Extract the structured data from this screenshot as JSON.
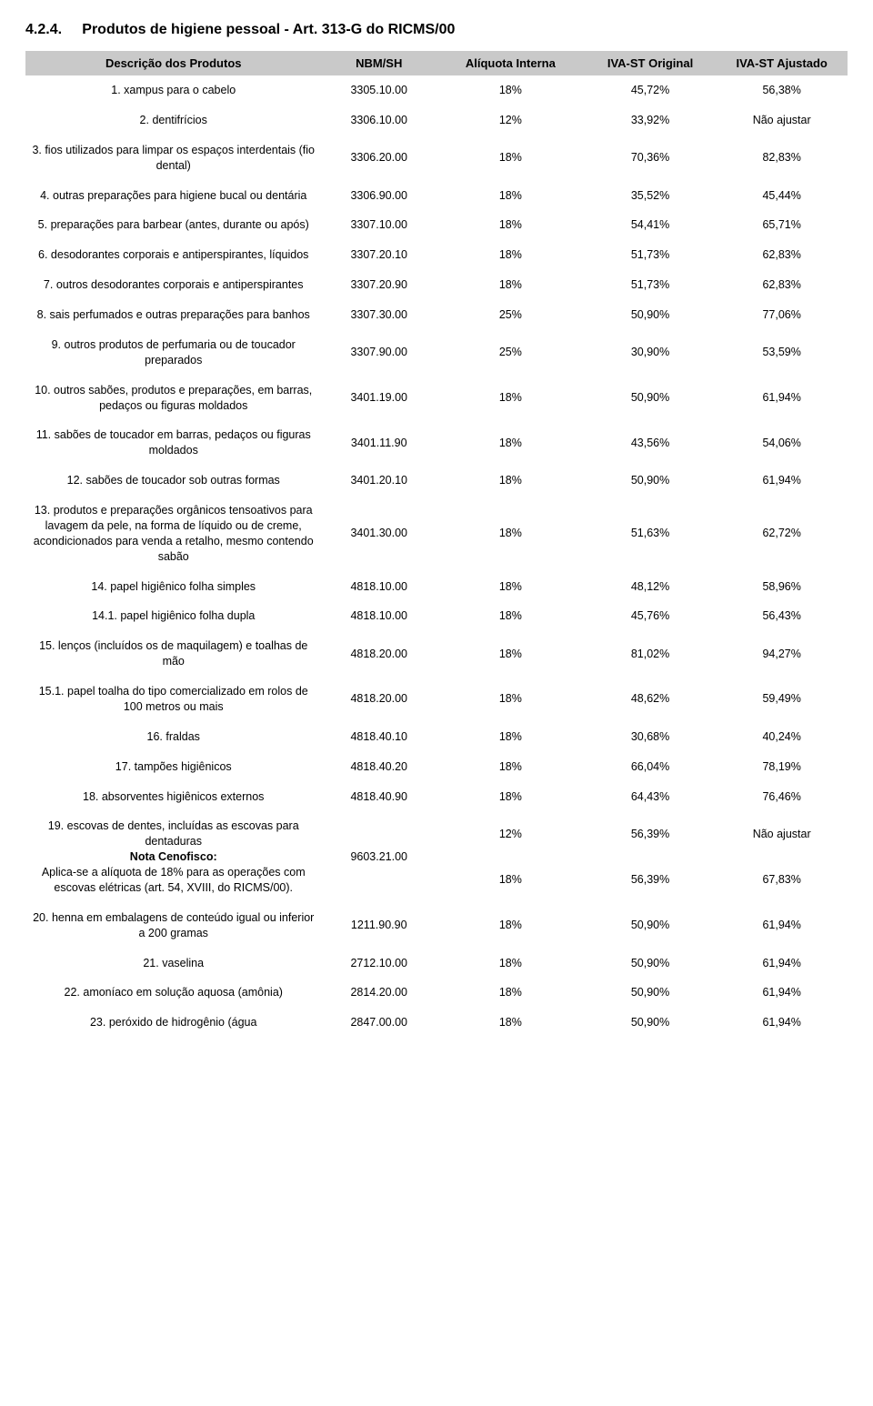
{
  "document": {
    "section_number": "4.2.4.",
    "section_title": "Produtos de higiene pessoal - Art. 313-G do RICMS/00",
    "columns": [
      "Descrição dos Produtos",
      "NBM/SH",
      "Alíquota Interna",
      "IVA-ST Original",
      "IVA-ST Ajustado"
    ],
    "rows": [
      {
        "desc": "1. xampus para o cabelo",
        "nbm": "3305.10.00",
        "aliq": "18%",
        "iva1": "45,72%",
        "iva2": "56,38%"
      },
      {
        "desc": "2. dentifrícios",
        "nbm": "3306.10.00",
        "aliq": "12%",
        "iva1": "33,92%",
        "iva2": "Não ajustar"
      },
      {
        "desc": "3. fios utilizados para limpar os espaços interdentais (fio dental)",
        "nbm": "3306.20.00",
        "aliq": "18%",
        "iva1": "70,36%",
        "iva2": "82,83%"
      },
      {
        "desc": "4. outras preparações para higiene bucal ou dentária",
        "nbm": "3306.90.00",
        "aliq": "18%",
        "iva1": "35,52%",
        "iva2": "45,44%"
      },
      {
        "desc": "5. preparações para barbear (antes, durante ou após)",
        "nbm": "3307.10.00",
        "aliq": "18%",
        "iva1": "54,41%",
        "iva2": "65,71%"
      },
      {
        "desc": "6. desodorantes corporais e antiperspirantes, líquidos",
        "nbm": "3307.20.10",
        "aliq": "18%",
        "iva1": "51,73%",
        "iva2": "62,83%"
      },
      {
        "desc": "7. outros desodorantes corporais e antiperspirantes",
        "nbm": "3307.20.90",
        "aliq": "18%",
        "iva1": "51,73%",
        "iva2": "62,83%"
      },
      {
        "desc": "8. sais perfumados e outras preparações para banhos",
        "nbm": "3307.30.00",
        "aliq": "25%",
        "iva1": "50,90%",
        "iva2": "77,06%"
      },
      {
        "desc": "9. outros produtos de perfumaria ou de toucador preparados",
        "nbm": "3307.90.00",
        "aliq": "25%",
        "iva1": "30,90%",
        "iva2": "53,59%"
      },
      {
        "desc": "10. outros sabões, produtos e preparações, em barras, pedaços ou figuras moldados",
        "nbm": "3401.19.00",
        "aliq": "18%",
        "iva1": "50,90%",
        "iva2": "61,94%"
      },
      {
        "desc": "11. sabões de toucador em barras, pedaços ou figuras moldados",
        "nbm": "3401.11.90",
        "aliq": "18%",
        "iva1": "43,56%",
        "iva2": "54,06%"
      },
      {
        "desc": "12. sabões de toucador sob outras formas",
        "nbm": "3401.20.10",
        "aliq": "18%",
        "iva1": "50,90%",
        "iva2": "61,94%"
      },
      {
        "desc": "13. produtos e preparações orgânicos tensoativos para lavagem da pele, na forma de líquido ou de creme, acondicionados para venda a retalho, mesmo contendo sabão",
        "nbm": "3401.30.00",
        "aliq": "18%",
        "iva1": "51,63%",
        "iva2": "62,72%"
      },
      {
        "desc": "14. papel higiênico folha simples",
        "nbm": "4818.10.00",
        "aliq": "18%",
        "iva1": "48,12%",
        "iva2": "58,96%"
      },
      {
        "desc": "14.1. papel higiênico folha dupla",
        "nbm": "4818.10.00",
        "aliq": "18%",
        "iva1": "45,76%",
        "iva2": "56,43%"
      },
      {
        "desc": "15. lenços (incluídos os de maquilagem) e toalhas de mão",
        "nbm": "4818.20.00",
        "aliq": "18%",
        "iva1": "81,02%",
        "iva2": "94,27%"
      },
      {
        "desc": "15.1. papel toalha do tipo comercializado em rolos de 100 metros ou mais",
        "nbm": "4818.20.00",
        "aliq": "18%",
        "iva1": "48,62%",
        "iva2": "59,49%"
      },
      {
        "desc": "16. fraldas",
        "nbm": "4818.40.10",
        "aliq": "18%",
        "iva1": "30,68%",
        "iva2": "40,24%"
      },
      {
        "desc": "17. tampões higiênicos",
        "nbm": "4818.40.20",
        "aliq": "18%",
        "iva1": "66,04%",
        "iva2": "78,19%"
      },
      {
        "desc": "18. absorventes higiênicos externos",
        "nbm": "4818.40.90",
        "aliq": "18%",
        "iva1": "64,43%",
        "iva2": "76,46%"
      }
    ],
    "row19": {
      "desc_line1": "19. escovas de dentes, incluídas as escovas para dentaduras",
      "desc_bold": "Nota Cenofisco:",
      "desc_line2": "Aplica-se a alíquota de 18% para as operações com escovas elétricas (art. 54, XVIII, do RICMS/00).",
      "nbm": "9603.21.00",
      "aliq_a": "12%",
      "iva1_a": "56,39%",
      "iva2_a": "Não ajustar",
      "aliq_b": "18%",
      "iva1_b": "56,39%",
      "iva2_b": "67,83%"
    },
    "rows_after": [
      {
        "desc": "20. henna em embalagens de conteúdo igual ou inferior a 200 gramas",
        "nbm": "1211.90.90",
        "aliq": "18%",
        "iva1": "50,90%",
        "iva2": "61,94%"
      },
      {
        "desc": "21. vaselina",
        "nbm": "2712.10.00",
        "aliq": "18%",
        "iva1": "50,90%",
        "iva2": "61,94%"
      },
      {
        "desc": "22. amoníaco em solução aquosa (amônia)",
        "nbm": "2814.20.00",
        "aliq": "18%",
        "iva1": "50,90%",
        "iva2": "61,94%"
      },
      {
        "desc": "23. peróxido de hidrogênio (água",
        "nbm": "2847.00.00",
        "aliq": "18%",
        "iva1": "50,90%",
        "iva2": "61,94%"
      }
    ]
  }
}
